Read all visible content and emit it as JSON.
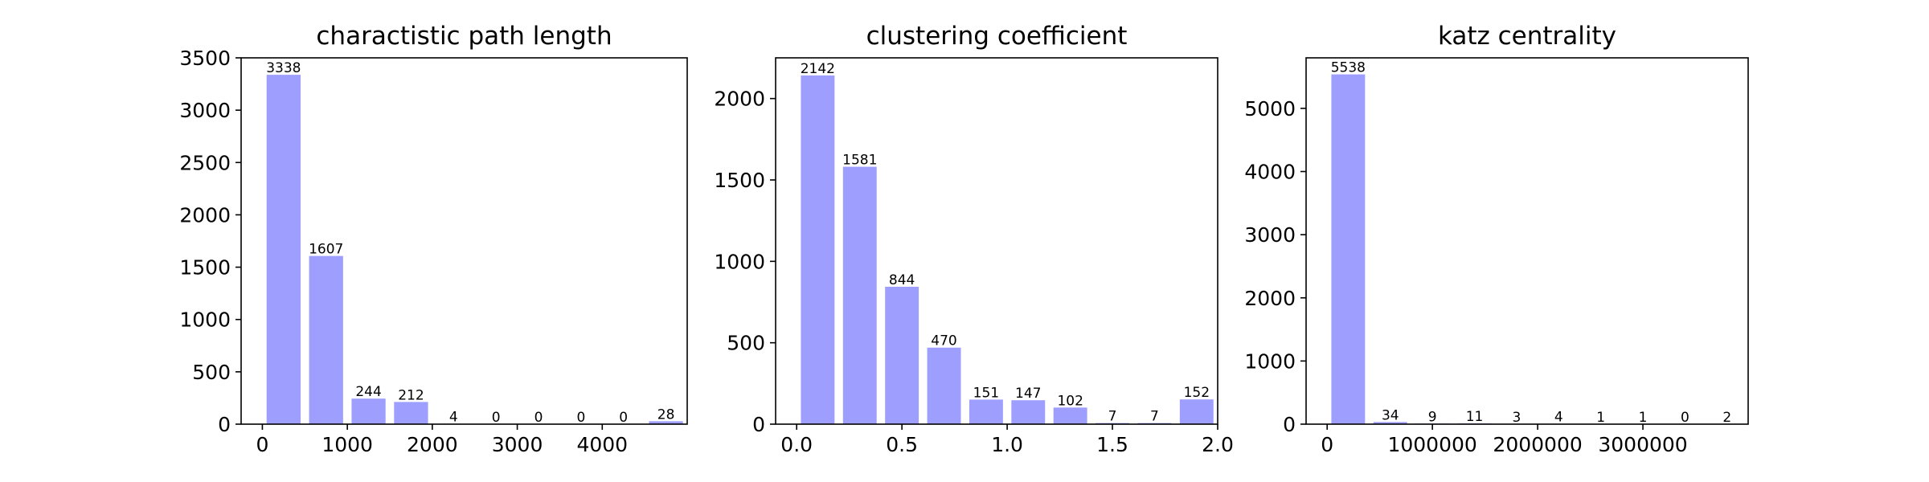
{
  "chart_data": [
    {
      "type": "bar",
      "title": "charactistic path length",
      "x": [
        250,
        750,
        1250,
        1750,
        2250,
        2750,
        3250,
        3750,
        4250,
        4750
      ],
      "bar_width": 400,
      "values": [
        3338,
        1607,
        244,
        212,
        4,
        0,
        0,
        0,
        0,
        28
      ],
      "xlim": [
        -250,
        5000
      ],
      "ylim": [
        0,
        3500
      ],
      "xticks": [
        0,
        1000,
        2000,
        3000,
        4000
      ],
      "xtick_labels": [
        "0",
        "1000",
        "2000",
        "3000",
        "4000"
      ],
      "yticks": [
        0,
        500,
        1000,
        1500,
        2000,
        2500,
        3000,
        3500
      ],
      "ytick_labels": [
        "0",
        "500",
        "1000",
        "1500",
        "2000",
        "2500",
        "3000",
        "3500"
      ],
      "xlabel": "",
      "ylabel": "",
      "grid": false
    },
    {
      "type": "bar",
      "title": "clustering coefficient",
      "x": [
        0.1,
        0.3,
        0.5,
        0.7,
        0.9,
        1.1,
        1.3,
        1.5,
        1.7,
        1.9
      ],
      "bar_width": 0.16,
      "values": [
        2142,
        1581,
        844,
        470,
        151,
        147,
        102,
        7,
        7,
        152
      ],
      "xlim": [
        -0.1,
        2.0
      ],
      "ylim": [
        0,
        2250
      ],
      "xticks": [
        0.0,
        0.5,
        1.0,
        1.5,
        2.0
      ],
      "xtick_labels": [
        "0.0",
        "0.5",
        "1.0",
        "1.5",
        "2.0"
      ],
      "yticks": [
        0,
        500,
        1000,
        1500,
        2000
      ],
      "ytick_labels": [
        "0",
        "500",
        "1000",
        "1500",
        "2000"
      ],
      "xlabel": "",
      "ylabel": "",
      "grid": false
    },
    {
      "type": "bar",
      "title": "katz centrality",
      "x": [
        200000,
        600000,
        1000000,
        1400000,
        1800000,
        2200000,
        2600000,
        3000000,
        3400000,
        3800000
      ],
      "bar_width": 320000,
      "values": [
        5538,
        34,
        9,
        11,
        3,
        4,
        1,
        1,
        0,
        2
      ],
      "xlim": [
        -200000,
        4000000
      ],
      "ylim": [
        0,
        5800
      ],
      "xticks": [
        0,
        1000000,
        2000000,
        3000000
      ],
      "xtick_labels": [
        "0",
        "1000000",
        "2000000",
        "3000000"
      ],
      "yticks": [
        0,
        1000,
        2000,
        3000,
        4000,
        5000
      ],
      "ytick_labels": [
        "0",
        "1000",
        "2000",
        "3000",
        "4000",
        "5000"
      ],
      "xlabel": "",
      "ylabel": "",
      "grid": false
    }
  ],
  "colors": {
    "bar": "#9e9efe",
    "axis": "#000000",
    "background": "#ffffff"
  }
}
